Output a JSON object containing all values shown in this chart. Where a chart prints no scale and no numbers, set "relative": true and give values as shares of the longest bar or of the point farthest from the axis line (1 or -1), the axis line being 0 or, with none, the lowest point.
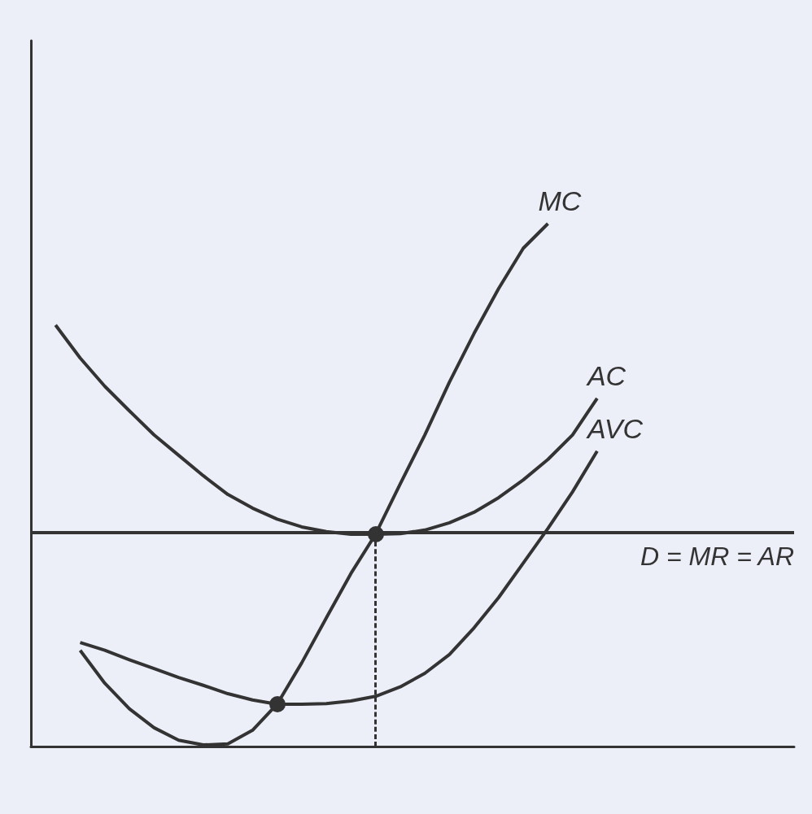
{
  "chart_data": {
    "type": "line",
    "relative": true,
    "marker": "none",
    "categories": [
      null,
      null,
      null,
      null,
      null,
      null,
      null,
      null,
      null,
      null,
      null,
      null,
      null,
      null,
      null,
      null,
      null,
      null,
      null,
      null,
      null,
      null,
      null,
      null,
      null,
      null,
      null,
      null,
      null,
      null,
      null,
      null
    ],
    "ylim": [
      0,
      1.35
    ],
    "series": [
      {
        "name": "MC",
        "color": "#333333",
        "values": [
          null,
          null,
          0.184,
          0.121,
          0.072,
          0.036,
          0.012,
          0.003,
          0.005,
          0.031,
          0.081,
          0.16,
          0.246,
          0.331,
          0.406,
          0.502,
          0.596,
          0.697,
          0.79,
          0.876,
          0.953,
          1.0,
          null,
          null,
          null,
          null,
          null,
          null,
          null,
          null,
          null,
          null
        ]
      },
      {
        "name": "AC",
        "color": "#333333",
        "values": [
          null,
          0.806,
          0.743,
          0.689,
          0.642,
          0.596,
          0.557,
          0.518,
          0.482,
          0.456,
          0.435,
          0.42,
          0.411,
          0.406,
          0.406,
          0.407,
          0.414,
          0.428,
          0.448,
          0.476,
          0.51,
          0.549,
          0.596,
          0.666,
          null,
          null,
          null,
          null,
          null,
          null,
          null,
          null
        ]
      },
      {
        "name": "AVC",
        "color": "#333333",
        "values": [
          null,
          null,
          0.199,
          0.184,
          0.166,
          0.149,
          0.132,
          0.117,
          0.101,
          0.089,
          0.081,
          0.081,
          0.082,
          0.087,
          0.096,
          0.114,
          0.14,
          0.176,
          0.227,
          0.285,
          0.351,
          0.417,
          0.487,
          0.565,
          null,
          null,
          null,
          null,
          null,
          null,
          null,
          null
        ]
      }
    ],
    "ref_lines": [
      {
        "axis": "y",
        "value": 0.406,
        "label": "D = MR = AR",
        "color": "#333333"
      }
    ]
  }
}
